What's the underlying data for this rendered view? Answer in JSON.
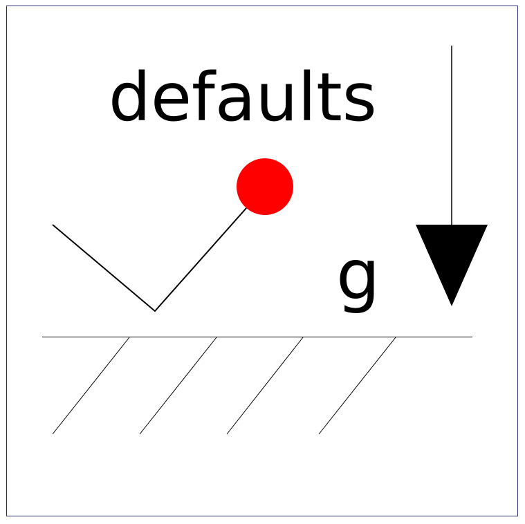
{
  "title": "defaults",
  "gravity_label": "g",
  "colors": {
    "frame": "#2b2b7a",
    "line": "#000000",
    "bob": "#ff0000",
    "background": "#ffffff"
  },
  "elements": {
    "pendulum": "pendulum-icon",
    "gravity_arrow": "arrow-down-icon",
    "ground": "ground-hatch-icon"
  }
}
